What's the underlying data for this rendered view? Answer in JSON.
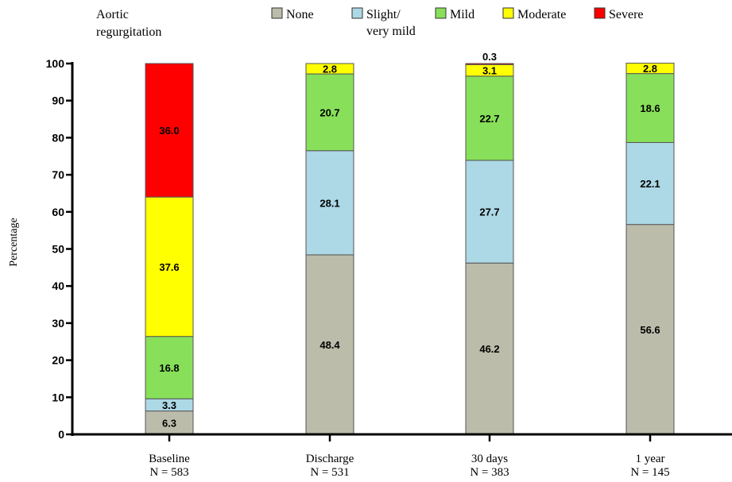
{
  "chart_data": {
    "type": "bar",
    "stacked": true,
    "legend_title": [
      "Aortic",
      "regurgitation"
    ],
    "ylabel": "Percentage",
    "ylim": [
      0,
      100
    ],
    "yticks": [
      "0",
      "10",
      "20",
      "30",
      "40",
      "50",
      "60",
      "70",
      "80",
      "90",
      "100"
    ],
    "legend_position": "top",
    "categories": [
      [
        "Baseline",
        "N = 583"
      ],
      [
        "Discharge",
        "N = 531"
      ],
      [
        "30 days",
        "N = 383"
      ],
      [
        "1 year",
        "N = 145"
      ]
    ],
    "series": [
      {
        "name": "None",
        "color": "#bcbcab",
        "values": [
          6.3,
          48.4,
          46.2,
          56.6
        ],
        "labels": [
          "6.3",
          "48.4",
          "46.2",
          "56.6"
        ]
      },
      {
        "name": "Slight/ very mild",
        "legend_lines": [
          "Slight/",
          "very mild"
        ],
        "color": "#add8e6",
        "values": [
          3.3,
          28.1,
          27.7,
          22.1
        ],
        "labels": [
          "3.3",
          "28.1",
          "27.7",
          "22.1"
        ]
      },
      {
        "name": "Mild",
        "color": "#88e05a",
        "values": [
          16.8,
          20.7,
          22.7,
          18.6
        ],
        "labels": [
          "16.8",
          "20.7",
          "22.7",
          "18.6"
        ]
      },
      {
        "name": "Moderate",
        "color": "#ffff00",
        "values": [
          37.6,
          2.8,
          3.1,
          2.8
        ],
        "labels": [
          "37.6",
          "2.8",
          "3.1",
          "2.8"
        ]
      },
      {
        "name": "Severe",
        "color": "#ff0000",
        "values": [
          36.0,
          0,
          0.3,
          0
        ],
        "labels": [
          "36.0",
          "",
          "0.3",
          ""
        ]
      }
    ]
  }
}
